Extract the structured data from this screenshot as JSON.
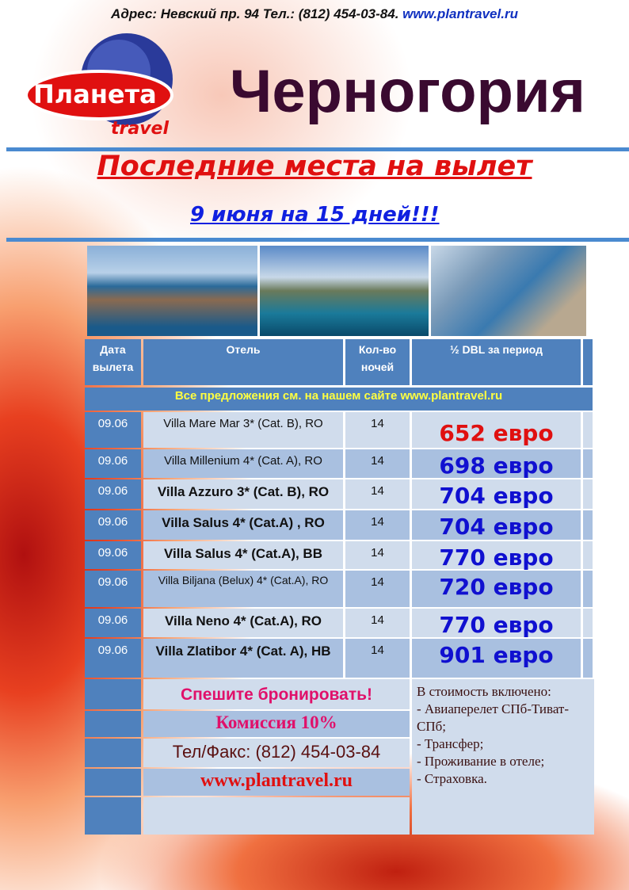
{
  "header": {
    "address": "Адрес: Невский пр. 94 Тел.: (812) 454-03-84.",
    "website": "www.plantravel.ru",
    "logo_text": "Планета",
    "logo_sub": "travel",
    "title": "Черногория",
    "subtitle": "Последние места на вылет",
    "dates": "9 июня на 15 дней!!!"
  },
  "table": {
    "headers": [
      "Дата вылета",
      "Отель",
      "Кол-во ночей",
      "½ DBL за период"
    ],
    "banner": "Все предложения см. на нашем сайте www.plantravel.ru",
    "rows": [
      {
        "date": "09.06",
        "hotel": "Villa Mare Mar 3* (Cat. B), RO",
        "nights": "14",
        "price": "652 евро"
      },
      {
        "date": "09.06",
        "hotel": "Villa Millenium 4* (Cat. A), RO",
        "nights": "14",
        "price": "698 евро"
      },
      {
        "date": "09.06",
        "hotel": "Villa Azzuro 3* (Cat. B), RO",
        "nights": "14",
        "price": "704 евро"
      },
      {
        "date": "09.06",
        "hotel": "Villa Salus 4* (Cat.A) , RO",
        "nights": "14",
        "price": "704 евро"
      },
      {
        "date": "09.06",
        "hotel": "Villa Salus 4* (Cat.A), BB",
        "nights": "14",
        "price": "770 евро"
      },
      {
        "date": "09.06",
        "hotel": "Villa Biljana (Belux) 4* (Cat.A), RO",
        "nights": "14",
        "price": "720 евро"
      },
      {
        "date": "09.06",
        "hotel": "Villa Neno 4* (Cat.A), RO",
        "nights": "14",
        "price": "770 евро"
      },
      {
        "date": "09.06",
        "hotel": "Villa Zlatibor 4* (Cat. A), HB",
        "nights": "14",
        "price": "901 евро"
      }
    ]
  },
  "footer": {
    "hurry": "Спешите бронировать!",
    "commission": "Комиссия 10%",
    "phone": "Тел/Факс: (812) 454-03-84",
    "website": "www.plantravel.ru",
    "included_title": "В стоимость включено:",
    "included": [
      "- Авиаперелет СПб-Тиват-СПб;",
      "- Трансфер;",
      "- Проживание в отеле;",
      "- Страховка."
    ]
  },
  "colors": {
    "accent_red": "#e01010",
    "accent_blue": "#1010d0",
    "table_header": "#4f81bd",
    "pink": "#e0106a"
  }
}
